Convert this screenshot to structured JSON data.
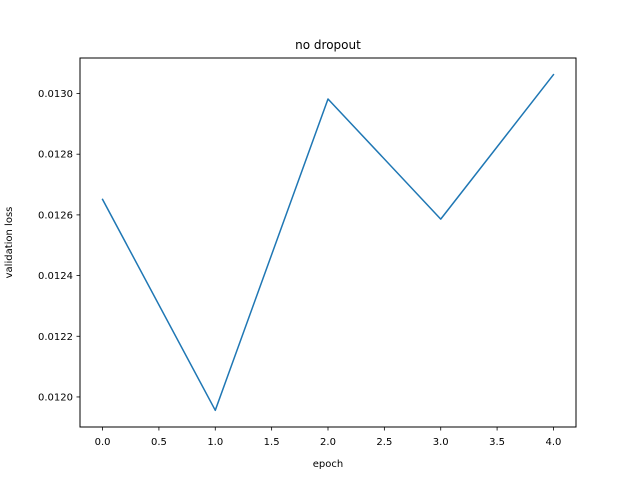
{
  "chart_data": {
    "type": "line",
    "title": "no dropout",
    "xlabel": "epoch",
    "ylabel": "validation loss",
    "x": [
      0,
      1,
      2,
      3,
      4
    ],
    "series": [
      {
        "values": [
          0.012651,
          0.011956,
          0.012982,
          0.012586,
          0.013062
        ],
        "color": "#1f77b4"
      }
    ],
    "xlim": [
      -0.2,
      4.2
    ],
    "ylim": [
      0.011901,
      0.013117
    ],
    "xticks": [
      0.0,
      0.5,
      1.0,
      1.5,
      2.0,
      2.5,
      3.0,
      3.5,
      4.0
    ],
    "xtick_labels": [
      "0.0",
      "0.5",
      "1.0",
      "1.5",
      "2.0",
      "2.5",
      "3.0",
      "3.5",
      "4.0"
    ],
    "yticks": [
      0.012,
      0.0122,
      0.0124,
      0.0126,
      0.0128,
      0.013
    ],
    "ytick_labels": [
      "0.0120",
      "0.0122",
      "0.0124",
      "0.0126",
      "0.0128",
      "0.0130"
    ],
    "grid": false,
    "legend": "none"
  }
}
